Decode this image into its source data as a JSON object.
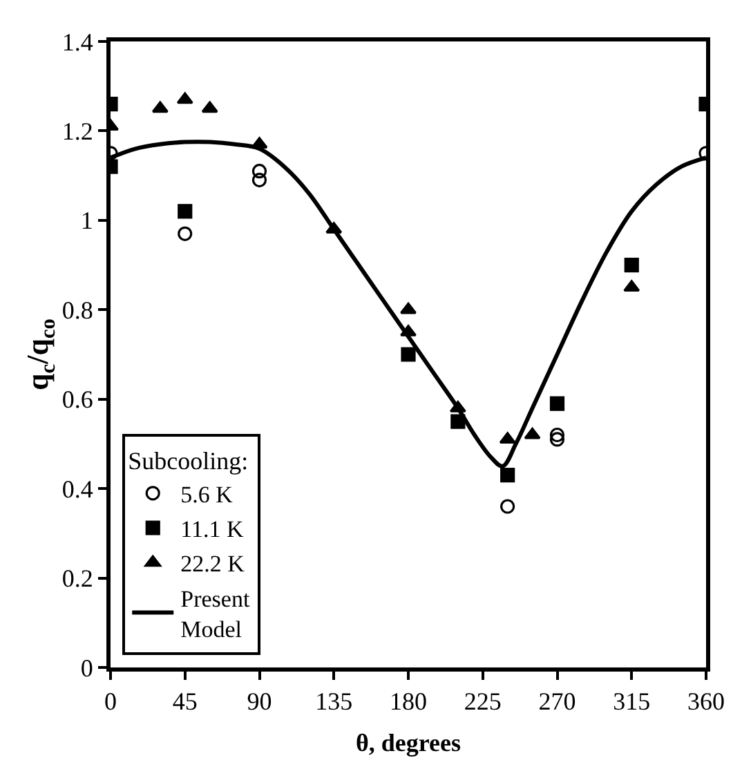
{
  "chart_data": {
    "type": "scatter",
    "xlabel": "θ, degrees",
    "ylabel": "q$_{c}$/q$_{co}$",
    "legend_title": "Subcooling:",
    "xlim": [
      0,
      360
    ],
    "xticks": [
      0,
      45,
      90,
      135,
      180,
      225,
      270,
      315,
      360
    ],
    "ylim": [
      0,
      1.4
    ],
    "yticks": [
      0,
      0.2,
      0.4,
      0.6,
      0.8,
      1,
      1.2,
      1.4
    ],
    "legend": "bottom left",
    "series": [
      {
        "name": "5.6 K",
        "color": "#000000",
        "marker": "circle-open",
        "x": [
          0,
          45,
          90,
          90,
          180,
          240,
          270,
          270,
          360
        ],
        "values": [
          1.15,
          0.97,
          1.11,
          1.09,
          null,
          0.36,
          0.52,
          0.51,
          1.15
        ]
      },
      {
        "name": "11.1 K",
        "color": "#000000",
        "marker": "square",
        "x": [
          0,
          0,
          45,
          90,
          180,
          210,
          240,
          270,
          315,
          360
        ],
        "values": [
          1.26,
          1.12,
          1.02,
          null,
          0.7,
          0.55,
          0.43,
          0.59,
          0.9,
          1.26
        ]
      },
      {
        "name": "22.2 K",
        "color": "#000000",
        "marker": "triangle",
        "x": [
          0,
          30,
          45,
          60,
          90,
          135,
          180,
          180,
          210,
          240,
          255,
          315
        ],
        "values": [
          1.21,
          1.25,
          1.27,
          1.25,
          1.17,
          0.98,
          0.8,
          0.75,
          0.58,
          0.51,
          0.52,
          0.85
        ]
      },
      {
        "name": "Present Model",
        "type": "line",
        "color": "#000000",
        "marker": "none",
        "line_style": "solid",
        "x": [
          0,
          15,
          30,
          45,
          60,
          75,
          90,
          105,
          120,
          135,
          150,
          165,
          180,
          195,
          210,
          220,
          230,
          237,
          245,
          255,
          270,
          285,
          300,
          315,
          330,
          345,
          360
        ],
        "values": [
          1.14,
          1.16,
          1.17,
          1.175,
          1.175,
          1.17,
          1.16,
          1.12,
          1.06,
          0.98,
          0.9,
          0.82,
          0.74,
          0.66,
          0.58,
          0.52,
          0.47,
          0.45,
          0.5,
          0.58,
          0.7,
          0.82,
          0.93,
          1.02,
          1.08,
          1.12,
          1.14
        ]
      }
    ]
  }
}
